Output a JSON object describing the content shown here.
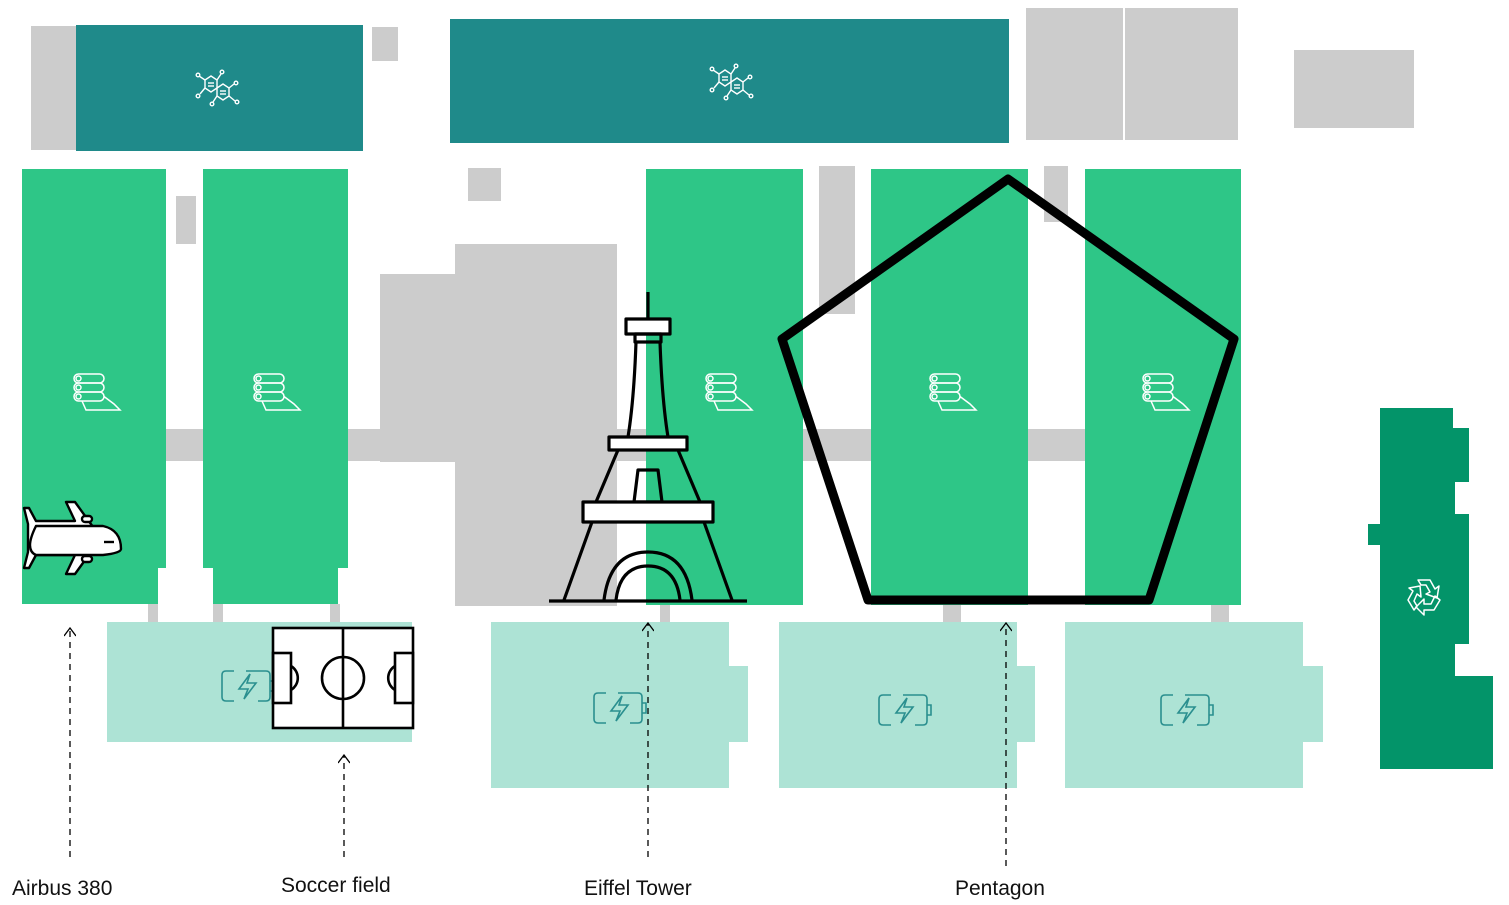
{
  "colors": {
    "gray": "#cccccc",
    "teal": "#1f8a8a",
    "green": "#2ec687",
    "mint": "#ade3d5",
    "dark_green": "#039469",
    "outline": "#000000",
    "icon_teal": "#2a8f8f"
  },
  "icons": {
    "network_module": "hexagon-network-icon",
    "production_hall": "stacked-rolls-icon",
    "battery_storage": "battery-charging-icon",
    "recycling": "recycle-icon"
  },
  "comparisons": [
    {
      "label": "Airbus 380",
      "icon": "airplane-icon"
    },
    {
      "label": "Soccer field",
      "icon": "soccer-field-icon"
    },
    {
      "label": "Eiffel Tower",
      "icon": "eiffel-tower-icon"
    },
    {
      "label": "Pentagon",
      "icon": "pentagon-outline-icon"
    }
  ]
}
